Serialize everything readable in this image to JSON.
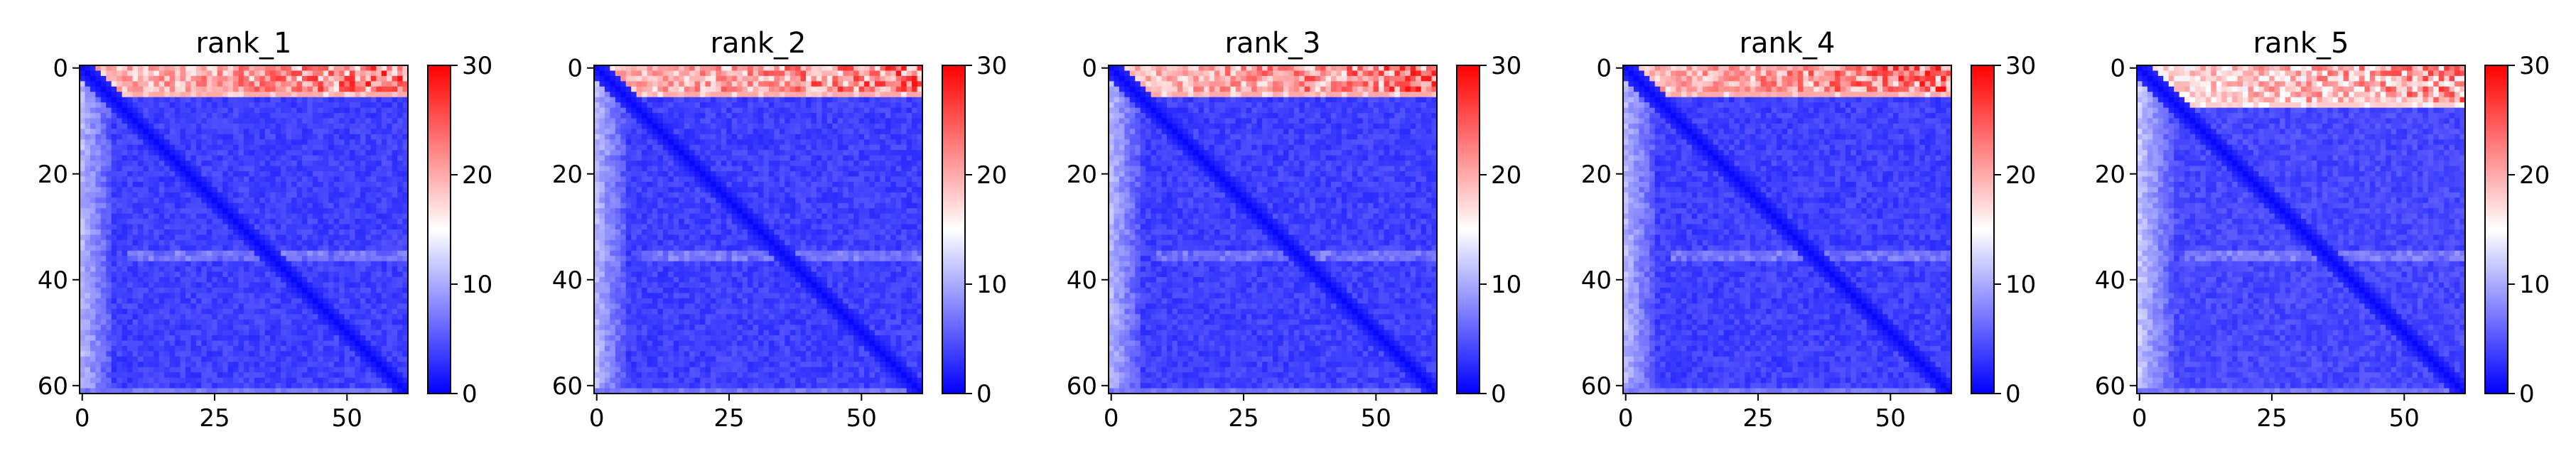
{
  "figure": {
    "colormap": "bwr",
    "colors": {
      "low": "#0000ff",
      "mid": "#ffffff",
      "high": "#ff0000",
      "axis": "#000000"
    }
  },
  "chart_data": [
    {
      "type": "heatmap",
      "title": "rank_1",
      "xlabel": "",
      "ylabel": "",
      "size": 62,
      "xlim": [
        0,
        61
      ],
      "ylim": [
        61,
        0
      ],
      "x_ticks": [
        0,
        25,
        50
      ],
      "y_ticks": [
        0,
        20,
        40,
        60
      ],
      "colorbar": {
        "range": [
          0,
          30
        ],
        "ticks": [
          0,
          10,
          20,
          30
        ]
      },
      "pattern": {
        "diag": 0.5,
        "bulk": 2.5,
        "left_band_cols": 6,
        "left_band_value": 9,
        "top_rows": 6,
        "top_value_range": [
          16,
          30
        ],
        "bottom_row_value": 6
      },
      "grid": false
    },
    {
      "type": "heatmap",
      "title": "rank_2",
      "xlabel": "",
      "ylabel": "",
      "size": 62,
      "xlim": [
        0,
        61
      ],
      "ylim": [
        61,
        0
      ],
      "x_ticks": [
        0,
        25,
        50
      ],
      "y_ticks": [
        0,
        20,
        40,
        60
      ],
      "colorbar": {
        "range": [
          0,
          30
        ],
        "ticks": [
          0,
          10,
          20,
          30
        ]
      },
      "pattern": {
        "diag": 0.5,
        "bulk": 2.5,
        "left_band_cols": 6,
        "left_band_value": 9,
        "top_rows": 6,
        "top_value_range": [
          16,
          30
        ],
        "bottom_row_value": 6
      },
      "grid": false
    },
    {
      "type": "heatmap",
      "title": "rank_3",
      "xlabel": "",
      "ylabel": "",
      "size": 62,
      "xlim": [
        0,
        61
      ],
      "ylim": [
        61,
        0
      ],
      "x_ticks": [
        0,
        25,
        50
      ],
      "y_ticks": [
        0,
        20,
        40,
        60
      ],
      "colorbar": {
        "range": [
          0,
          30
        ],
        "ticks": [
          0,
          10,
          20,
          30
        ]
      },
      "pattern": {
        "diag": 0.5,
        "bulk": 2.5,
        "left_band_cols": 6,
        "left_band_value": 9,
        "top_rows": 6,
        "top_value_range": [
          16,
          30
        ],
        "bottom_row_value": 6
      },
      "grid": false
    },
    {
      "type": "heatmap",
      "title": "rank_4",
      "xlabel": "",
      "ylabel": "",
      "size": 62,
      "xlim": [
        0,
        61
      ],
      "ylim": [
        61,
        0
      ],
      "x_ticks": [
        0,
        25,
        50
      ],
      "y_ticks": [
        0,
        20,
        40,
        60
      ],
      "colorbar": {
        "range": [
          0,
          30
        ],
        "ticks": [
          0,
          10,
          20,
          30
        ]
      },
      "pattern": {
        "diag": 0.5,
        "bulk": 2.5,
        "left_band_cols": 6,
        "left_band_value": 9,
        "top_rows": 6,
        "top_value_range": [
          16,
          30
        ],
        "bottom_row_value": 6
      },
      "grid": false
    },
    {
      "type": "heatmap",
      "title": "rank_5",
      "xlabel": "",
      "ylabel": "",
      "size": 62,
      "xlim": [
        0,
        61
      ],
      "ylim": [
        61,
        0
      ],
      "x_ticks": [
        0,
        25,
        50
      ],
      "y_ticks": [
        0,
        20,
        40,
        60
      ],
      "colorbar": {
        "range": [
          0,
          30
        ],
        "ticks": [
          0,
          10,
          20,
          30
        ]
      },
      "pattern": {
        "diag": 0.5,
        "bulk": 3,
        "left_band_cols": 8,
        "left_band_value": 10,
        "top_rows": 8,
        "top_value_range": [
          14,
          28
        ],
        "bottom_row_value": 6
      },
      "grid": false
    }
  ]
}
